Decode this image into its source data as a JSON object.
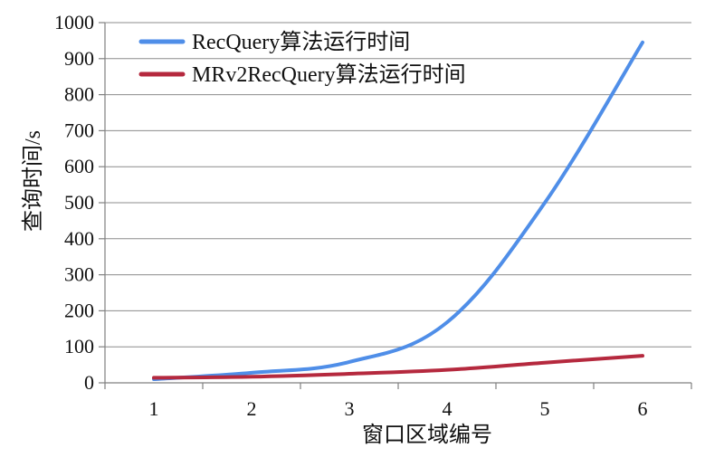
{
  "chart_data": {
    "type": "line",
    "title": "",
    "xlabel": "窗口区域编号",
    "ylabel": "查询时间/s",
    "categories": [
      "1",
      "2",
      "3",
      "4",
      "5",
      "6"
    ],
    "ylim": [
      0,
      1000
    ],
    "yticks": [
      "0",
      "100",
      "200",
      "300",
      "400",
      "500",
      "600",
      "700",
      "800",
      "900",
      "1000"
    ],
    "grid": true,
    "legend_position": "top-left",
    "series": [
      {
        "name": "RecQuery算法运行时间",
        "color": "#4f8ee8",
        "values": [
          10,
          28,
          58,
          168,
          500,
          945
        ]
      },
      {
        "name": "MRv2RecQuery算法运行时间",
        "color": "#b5293e",
        "values": [
          14,
          17,
          25,
          36,
          56,
          75
        ]
      }
    ]
  }
}
